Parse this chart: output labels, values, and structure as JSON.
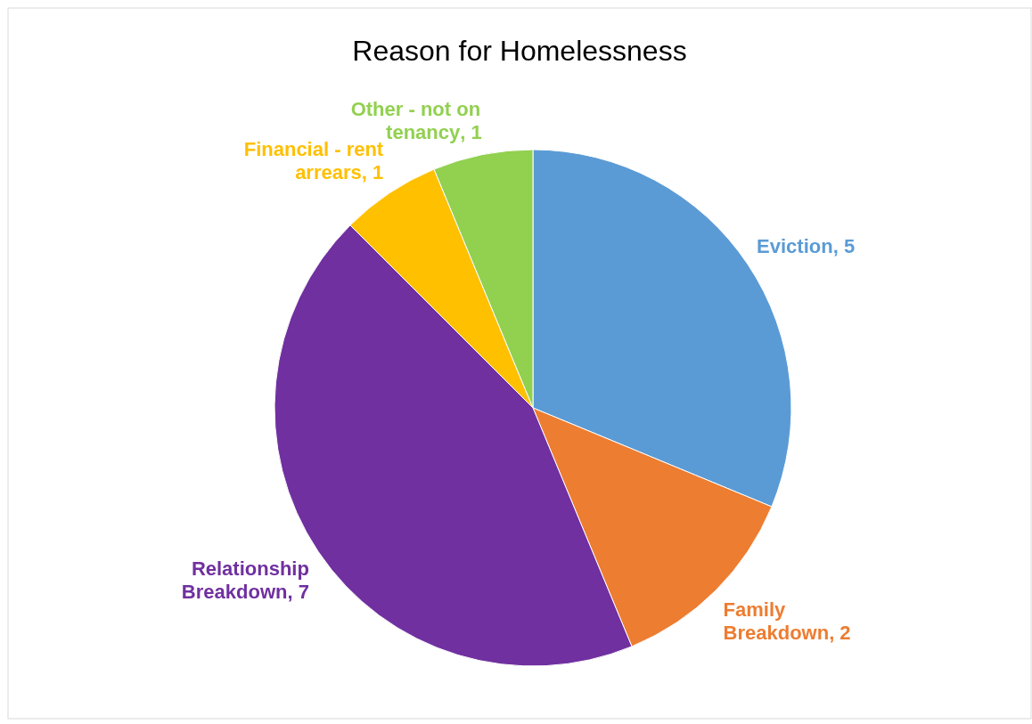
{
  "chart_data": {
    "type": "pie",
    "title": "Reason for Homelessness",
    "categories": [
      "Eviction",
      "Family Breakdown",
      "Relationship Breakdown",
      "Financial - rent arrears",
      "Other - not on tenancy"
    ],
    "values": [
      5,
      2,
      7,
      1,
      1
    ],
    "colors": [
      "#5b9bd5",
      "#ed7d31",
      "#7030a0",
      "#ffc000",
      "#92d050"
    ],
    "value_labels": [
      ", 5",
      ", 2",
      ", 7",
      ", 1",
      ", 1"
    ]
  }
}
